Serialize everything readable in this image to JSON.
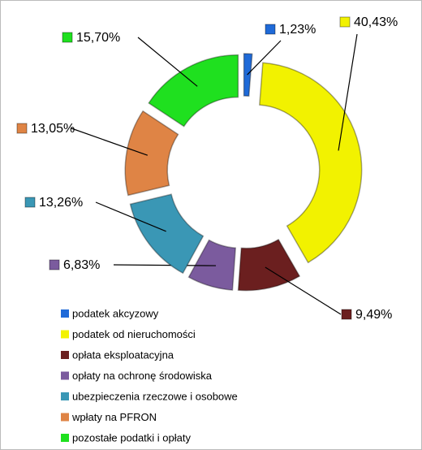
{
  "chart_data": {
    "type": "donut",
    "categories": [
      "podatek akcyzowy",
      "podatek od nieruchomości",
      "opłata eksploatacyjna",
      "opłaty na ochronę środowiska",
      "ubezpieczenia rzeczowe i osobowe",
      "wpłaty na PFRON",
      "pozostałe podatki i opłaty"
    ],
    "values": [
      1.23,
      40.43,
      9.49,
      6.83,
      13.26,
      13.05,
      15.7
    ],
    "value_labels": [
      "1,23%",
      "40,43%",
      "9,49%",
      "6,83%",
      "13,26%",
      "13,05%",
      "15,70%"
    ],
    "colors": [
      "#1f6ad8",
      "#f2f200",
      "#6b1f1f",
      "#7b5b9e",
      "#3a97b5",
      "#df8445",
      "#1fe01f"
    ],
    "legend": "bottom-left"
  }
}
